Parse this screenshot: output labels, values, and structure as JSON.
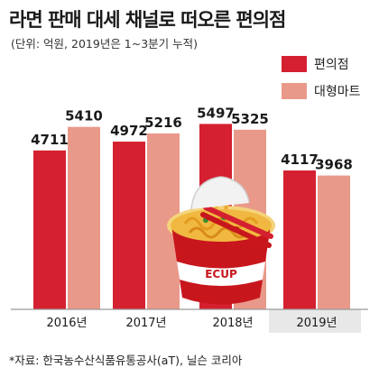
{
  "header": {
    "title": "라면 판매 대세 채널로 떠오른 편의점",
    "subtitle": "(단위: 억원, 2019년은 1~3분기 누적)"
  },
  "source": "*자료: 한국농수산식품유통공사(aT), 닐슨 코리아",
  "colors": {
    "convenience": "#d42030",
    "hypermarket": "#e9998a",
    "axis": "#999999",
    "highlight_bg": "#e8e8e8"
  },
  "chart_data": {
    "type": "bar",
    "categories": [
      "2016년",
      "2017년",
      "2018년",
      "2019년"
    ],
    "series": [
      {
        "name": "편의점",
        "values": [
          4711,
          4972,
          5497,
          4117
        ]
      },
      {
        "name": "대형마트",
        "values": [
          5410,
          5216,
          5325,
          3968
        ]
      }
    ],
    "value_labels": [
      [
        "4711",
        "4972",
        "5497",
        "4117"
      ],
      [
        "5410",
        "5216",
        "5325",
        "3968"
      ]
    ],
    "legend_position": "top-right",
    "highlighted_category": "2019년",
    "grid": false
  }
}
